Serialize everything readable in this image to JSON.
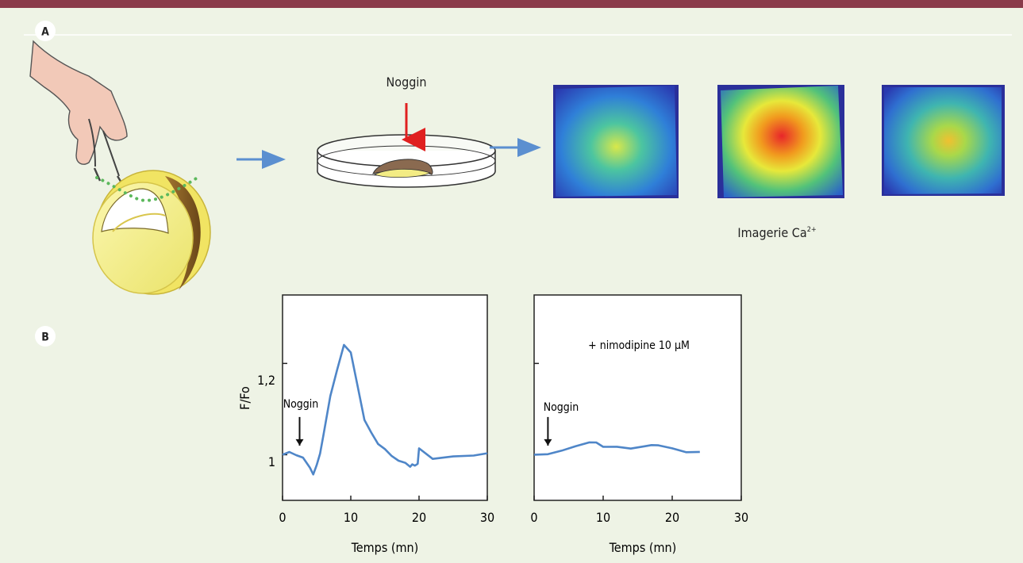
{
  "panels": {
    "a_label": "A",
    "b_label": "B"
  },
  "schematic": {
    "dish_treatment_label": "Noggin",
    "imaging_caption_main": "Imagerie Ca",
    "imaging_caption_superscript": "2+"
  },
  "colors": {
    "top_rule": "#8a3a4a",
    "background": "#eef3e5",
    "flow_arrow": "#5b8fd0",
    "trace_line": "#4f86c8",
    "treatment_arrow": "#e02020",
    "dotted_cut_line": "#5cb85c"
  },
  "chart_data": [
    {
      "type": "line",
      "title": "",
      "xlabel": "Temps (mn)",
      "ylabel": "F/Fo",
      "xlim": [
        0,
        30
      ],
      "xticks": [
        0,
        10,
        20,
        30
      ],
      "ylim": [
        0.9,
        1.35
      ],
      "yticks": [
        1,
        1.2
      ],
      "ytick_labels": [
        "1",
        "1,2"
      ],
      "annotation": {
        "text": "Noggin",
        "x": 2.5
      },
      "series": [
        {
          "x": [
            0,
            1,
            2,
            3,
            4,
            4.5,
            5,
            5.5,
            6,
            7,
            8,
            9,
            10,
            11,
            12,
            13,
            14,
            15,
            16,
            17,
            18,
            18.7,
            19,
            19.4,
            19.8,
            20,
            22,
            25,
            28,
            30
          ],
          "y": [
            1.0,
            1.01,
            1.0,
            0.99,
            0.97,
            0.96,
            0.98,
            1.0,
            1.04,
            1.13,
            1.19,
            1.24,
            1.22,
            1.15,
            1.08,
            1.05,
            1.02,
            1.01,
            1.0,
            0.99,
            0.98,
            0.97,
            0.98,
            0.98,
            0.98,
            1.01,
            0.99,
            1.0,
            1.0,
            1.0
          ]
        }
      ]
    },
    {
      "type": "line",
      "title": "",
      "xlabel": "Temps (mn)",
      "ylabel": "",
      "xlim": [
        0,
        30
      ],
      "xticks": [
        0,
        10,
        20,
        30
      ],
      "ylim": [
        0.9,
        1.35
      ],
      "yticks": [
        1,
        1.2
      ],
      "ytick_labels": [
        "",
        ""
      ],
      "annotation": {
        "text": "Noggin",
        "x": 2
      },
      "inset_text": "+ nimodipine 10 µM",
      "series": [
        {
          "x": [
            0,
            2,
            4,
            6,
            8,
            9,
            10,
            12,
            14,
            16,
            17,
            18,
            20,
            22,
            24
          ],
          "y": [
            1.0,
            1.005,
            1.01,
            1.015,
            1.025,
            1.03,
            1.02,
            1.015,
            1.01,
            1.02,
            1.025,
            1.02,
            1.01,
            1.005,
            1.01
          ]
        }
      ]
    }
  ]
}
